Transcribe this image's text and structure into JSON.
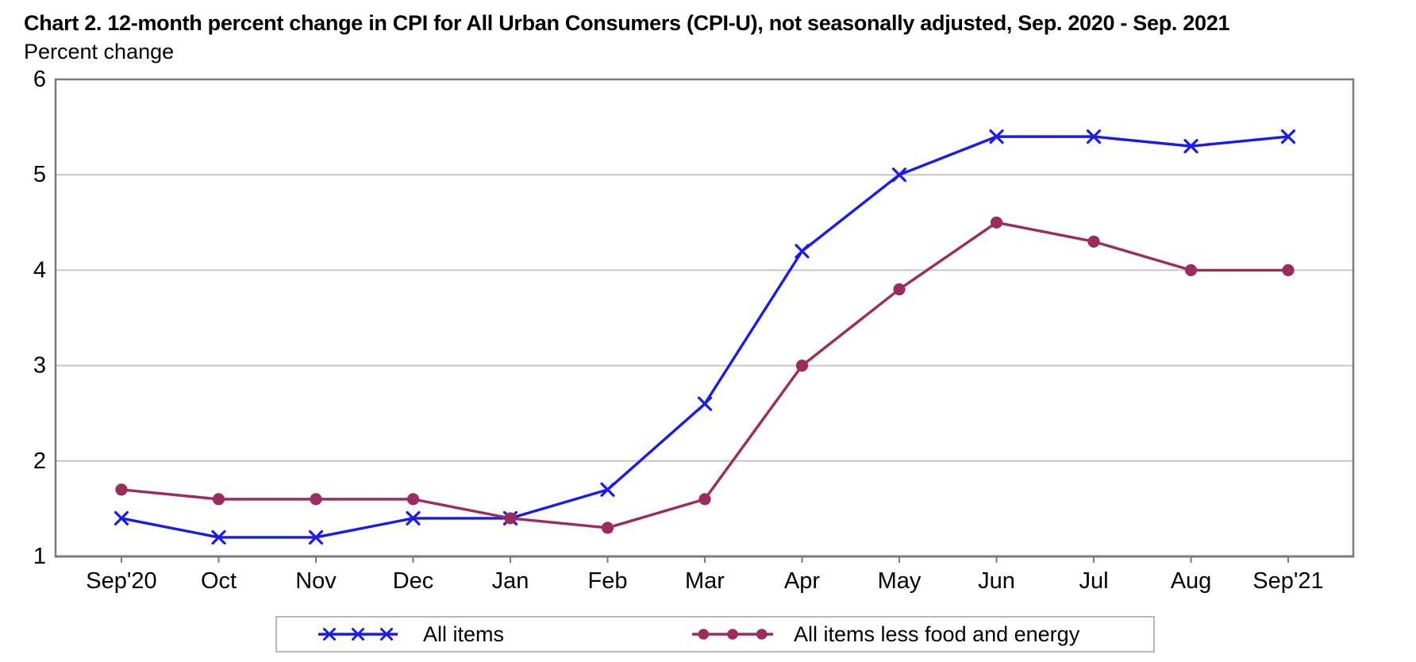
{
  "header": {
    "title": "Chart 2. 12-month percent change in CPI for All Urban Consumers (CPI-U), not seasonally adjusted, Sep. 2020 - Sep. 2021",
    "y_axis_unit": "Percent change"
  },
  "chart_data": {
    "type": "line",
    "title": "Chart 2. 12-month percent change in CPI for All Urban Consumers (CPI-U), not seasonally adjusted, Sep. 2020 - Sep. 2021",
    "ylabel": "Percent change",
    "xlabel": "",
    "categories": [
      "Sep'20",
      "Oct",
      "Nov",
      "Dec",
      "Jan",
      "Feb",
      "Mar",
      "Apr",
      "May",
      "Jun",
      "Jul",
      "Aug",
      "Sep'21"
    ],
    "series": [
      {
        "name": "All items",
        "color": "#1a1aee",
        "marker": "x",
        "values": [
          1.4,
          1.2,
          1.2,
          1.4,
          1.4,
          1.7,
          2.6,
          4.2,
          5.0,
          5.4,
          5.4,
          5.3,
          5.4
        ]
      },
      {
        "name": "All items less food and energy",
        "color": "#9d2c5e",
        "marker": "circle",
        "values": [
          1.7,
          1.6,
          1.6,
          1.6,
          1.4,
          1.3,
          1.6,
          3.0,
          3.8,
          4.5,
          4.3,
          4.0,
          4.0
        ]
      }
    ],
    "ylim": [
      1,
      6
    ],
    "yticks": [
      1,
      2,
      3,
      4,
      5,
      6
    ],
    "grid": "horizontal",
    "legend_position": "bottom"
  },
  "styles": {
    "axis_color": "#7a7a7a",
    "gridline_color": "#c6c6c6",
    "text_color": "#000000",
    "legend_border_color": "#b8b8b8",
    "background": "#ffffff"
  }
}
